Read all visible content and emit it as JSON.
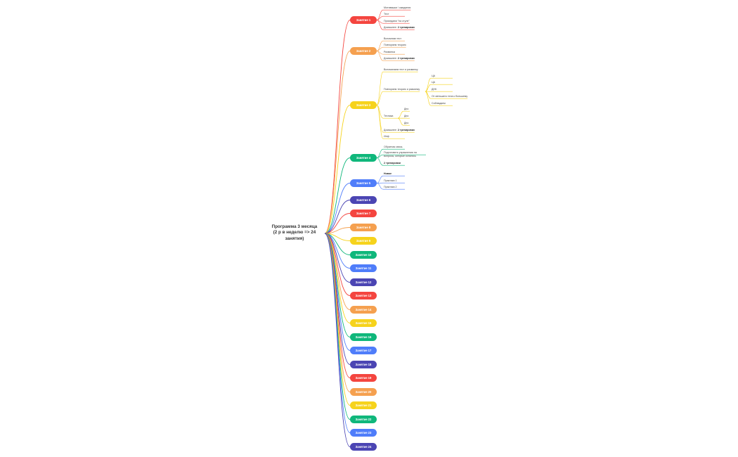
{
  "root": {
    "line1": "Программа 3 месяца",
    "line2": "(2 р в неделю => 24",
    "line3": "занятия)"
  },
  "colors": {
    "red": "#f4453f",
    "orange": "#f5a04f",
    "yellow": "#f6d31c",
    "green": "#0fb77b",
    "blue": "#4f7dfa",
    "indigo": "#4b45b3"
  },
  "lessons": [
    "Занятие 1",
    "Занятие 2",
    "Занятие 3",
    "Занятие 4",
    "Занятие 5",
    "Занятие 6",
    "Занятие 7",
    "Занятие 8",
    "Занятие 9",
    "Занятие 10",
    "Занятие 11",
    "Занятие 12",
    "Занятие 13",
    "Занятие 14",
    "Занятие 15",
    "Занятие 16",
    "Занятие 17",
    "Занятие 18",
    "Занятие 19",
    "Занятие 20",
    "Занятие 21",
    "Занятие 22",
    "Занятие 23",
    "Занятие 24"
  ],
  "lesson1": {
    "items": [
      "Мотивашки / ожидания",
      "Тест",
      "Приседаем \"на стуле\""
    ],
    "homework_prefix": "Домашнее: ",
    "homework_bold": "2 тренировки"
  },
  "lesson2": {
    "items": [
      "Вспомним тест",
      "Повторяем теорию",
      "Разминка"
    ],
    "homework_prefix": "Домашнее: ",
    "homework_bold": "2 тренировки"
  },
  "lesson3": {
    "item_top": "Вспоминаем тест и разминку",
    "group1": "Повторяем теорию и разминку",
    "group1_children": [
      "ЦА",
      "ЦА",
      "ДНК",
      "От меньшего тела к большему",
      "Соблюдаем"
    ],
    "group2": "Техника",
    "group2_children": [
      "Дно",
      "Дно",
      "Дно"
    ],
    "homework_prefix": "Домашнее: ",
    "homework_bold": "2 тренировки",
    "item_bottom": "Инф"
  },
  "lesson4": {
    "items": [
      "Обратная связь",
      "Подготовить упражнения на вопросы, которые остались"
    ],
    "homework_bold": "2 тренировки"
  },
  "lesson5": {
    "items": [
      "Новое",
      "Практика 1",
      "Практика 2"
    ]
  }
}
